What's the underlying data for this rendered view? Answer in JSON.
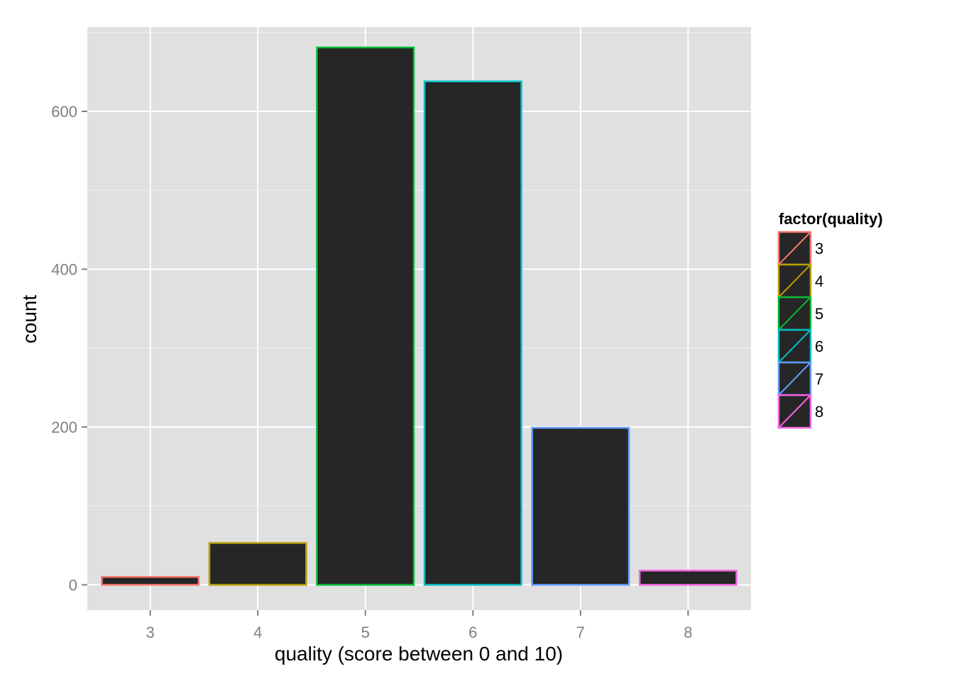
{
  "chart_data": {
    "type": "bar",
    "categories": [
      "3",
      "4",
      "5",
      "6",
      "7",
      "8"
    ],
    "values": [
      10,
      53,
      681,
      638,
      199,
      18
    ],
    "xlabel": "quality (score between 0 and 10)",
    "ylabel": "count",
    "ylim": [
      -32,
      707
    ],
    "yticks": [
      0,
      200,
      400,
      600
    ],
    "grid": true,
    "bar_fill": "#262626",
    "panel_background": "#e0e0e0",
    "legend": {
      "title": "factor(quality)",
      "position": "right",
      "entries": [
        "3",
        "4",
        "5",
        "6",
        "7",
        "8"
      ]
    },
    "colors": [
      "#f8766d",
      "#b79f00",
      "#00ba38",
      "#00bfc4",
      "#619cff",
      "#f564e3"
    ]
  }
}
